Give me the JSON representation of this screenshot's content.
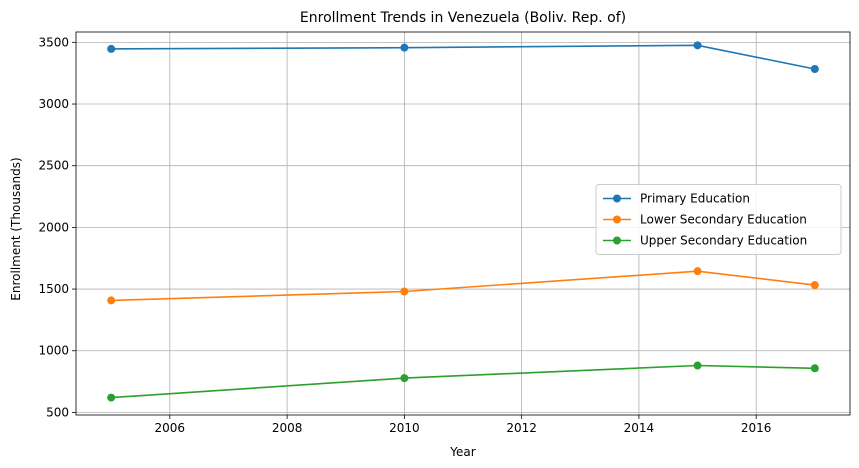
{
  "chart_data": {
    "type": "line",
    "title": "Enrollment Trends in Venezuela (Boliv. Rep. of)",
    "xlabel": "Year",
    "ylabel": "Enrollment (Thousands)",
    "xlim": [
      2004.4,
      2017.6
    ],
    "ylim": [
      479,
      3584
    ],
    "xticks": [
      2006,
      2008,
      2010,
      2012,
      2014,
      2016
    ],
    "yticks": [
      500,
      1000,
      1500,
      2000,
      2500,
      3000,
      3500
    ],
    "grid": true,
    "legend_position": "center-right",
    "x": [
      2005,
      2010,
      2015,
      2017
    ],
    "series": [
      {
        "name": "Primary Education",
        "color": "#1f77b4",
        "values": [
          3447,
          3457,
          3476,
          3284
        ]
      },
      {
        "name": "Lower Secondary Education",
        "color": "#ff7f0e",
        "values": [
          1408,
          1480,
          1645,
          1532
        ]
      },
      {
        "name": "Upper Secondary Education",
        "color": "#2ca02c",
        "values": [
          620,
          778,
          880,
          858
        ]
      }
    ]
  }
}
